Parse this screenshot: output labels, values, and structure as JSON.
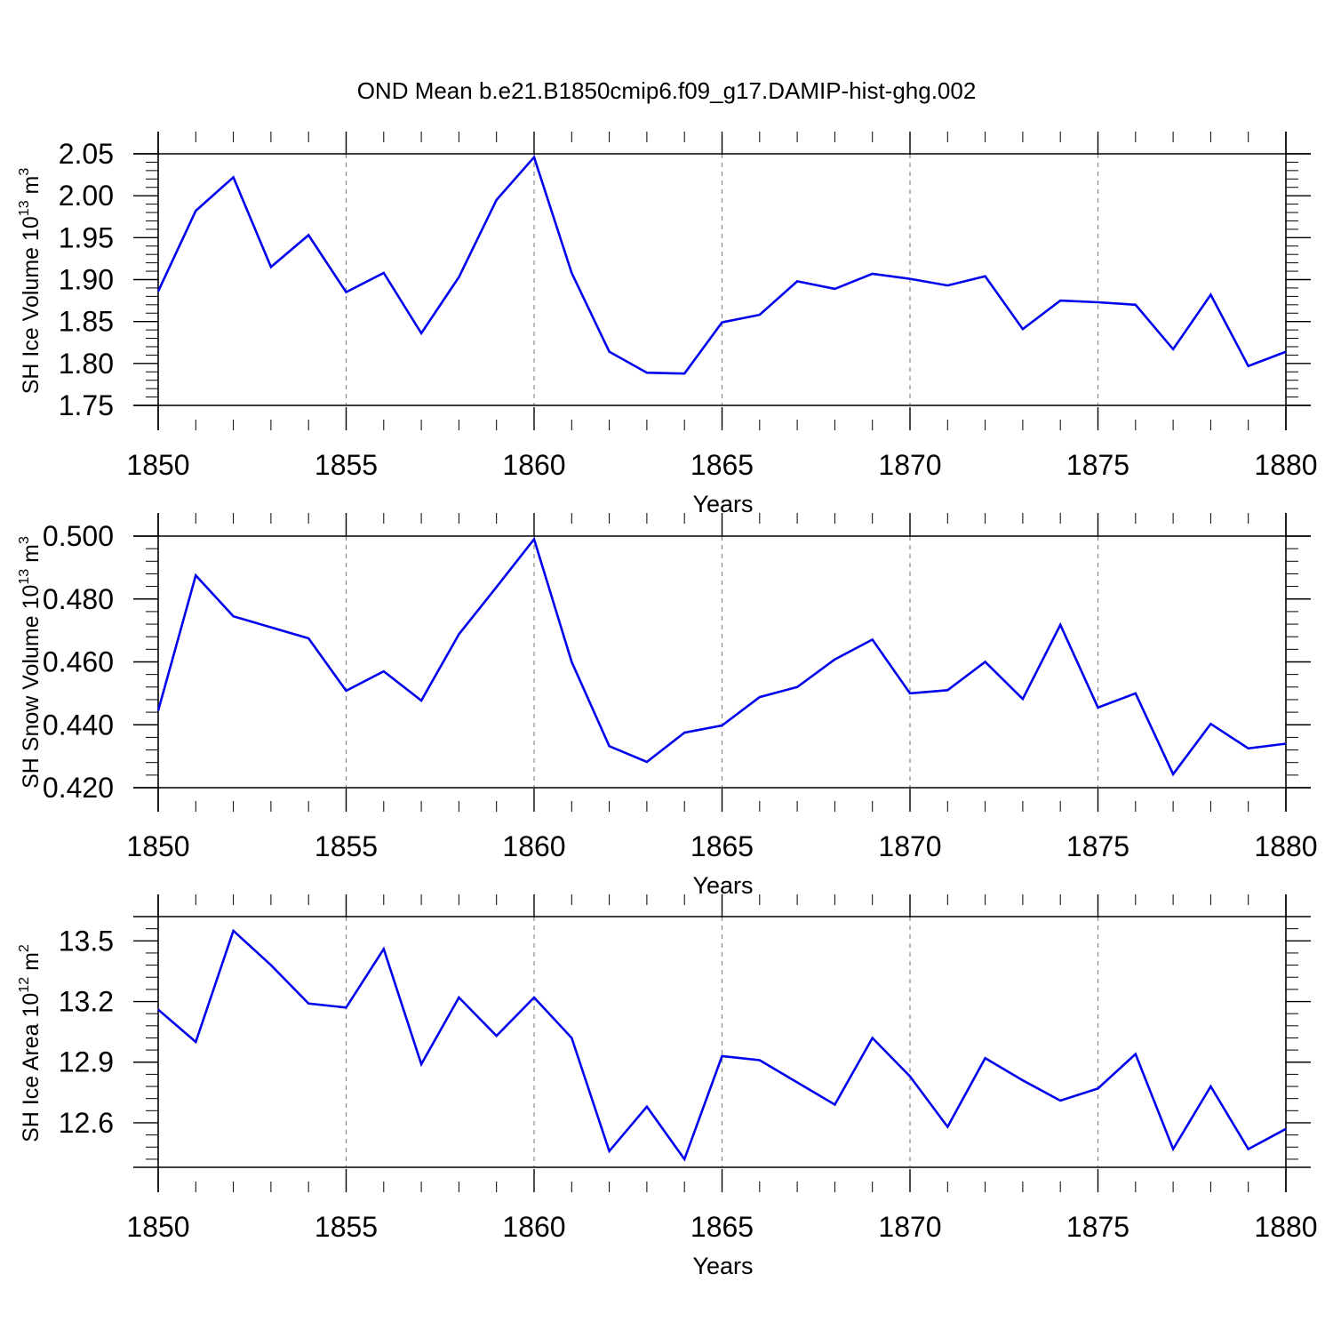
{
  "figure": {
    "title": "OND Mean b.e21.B1850cmip6.f09_g17.DAMIP-hist-ghg.002"
  },
  "chart_data": [
    {
      "type": "line",
      "xlabel": "Years",
      "ylabel": "SH Ice Volume 10",
      "ylabel_sup": "13",
      "ylabel_unit": " m",
      "ylabel_unit_sup": "3",
      "xlim": [
        1850,
        1880
      ],
      "ylim": [
        1.75,
        2.05
      ],
      "xticks": [
        1850,
        1855,
        1860,
        1865,
        1870,
        1875,
        1880
      ],
      "xtick_labels": [
        "1850",
        "1855",
        "1860",
        "1865",
        "1870",
        "1875",
        "1880"
      ],
      "yticks": [
        1.75,
        1.8,
        1.85,
        1.9,
        1.95,
        2.0,
        2.05
      ],
      "ytick_labels": [
        "1.75",
        "1.80",
        "1.85",
        "1.90",
        "1.95",
        "2.00",
        "2.05"
      ],
      "grid": "vertical dashed at major x ticks",
      "color": "#0000ee",
      "x": [
        1850,
        1851,
        1852,
        1853,
        1854,
        1855,
        1856,
        1857,
        1858,
        1859,
        1860,
        1861,
        1862,
        1863,
        1864,
        1865,
        1866,
        1867,
        1868,
        1869,
        1870,
        1871,
        1872,
        1873,
        1874,
        1875,
        1876,
        1877,
        1878,
        1879,
        1880
      ],
      "y": [
        1.886,
        1.982,
        2.022,
        1.915,
        1.953,
        1.885,
        1.908,
        1.836,
        1.903,
        1.995,
        2.046,
        1.908,
        1.814,
        1.789,
        1.788,
        1.849,
        1.858,
        1.898,
        1.889,
        1.907,
        1.901,
        1.893,
        1.904,
        1.841,
        1.875,
        1.873,
        1.87,
        1.817,
        1.882,
        1.797,
        1.814
      ]
    },
    {
      "type": "line",
      "xlabel": "Years",
      "ylabel": "SH Snow Volume 10",
      "ylabel_sup": "13",
      "ylabel_unit": " m",
      "ylabel_unit_sup": "3",
      "xlim": [
        1850,
        1880
      ],
      "ylim": [
        0.42,
        0.5
      ],
      "xticks": [
        1850,
        1855,
        1860,
        1865,
        1870,
        1875,
        1880
      ],
      "xtick_labels": [
        "1850",
        "1855",
        "1860",
        "1865",
        "1870",
        "1875",
        "1880"
      ],
      "yticks": [
        0.42,
        0.44,
        0.46,
        0.48,
        0.5
      ],
      "ytick_labels": [
        "0.420",
        "0.440",
        "0.460",
        "0.480",
        "0.500"
      ],
      "grid": "vertical dashed at major x ticks",
      "color": "#0000ee",
      "x": [
        1850,
        1851,
        1852,
        1853,
        1854,
        1855,
        1856,
        1857,
        1858,
        1859,
        1860,
        1861,
        1862,
        1863,
        1864,
        1865,
        1866,
        1867,
        1868,
        1869,
        1870,
        1871,
        1872,
        1873,
        1874,
        1875,
        1876,
        1877,
        1878,
        1879,
        1880
      ],
      "y": [
        0.4445,
        0.4875,
        0.4745,
        0.471,
        0.4675,
        0.4508,
        0.457,
        0.4477,
        0.4688,
        0.4838,
        0.499,
        0.46,
        0.4332,
        0.4282,
        0.4375,
        0.4398,
        0.4488,
        0.452,
        0.4608,
        0.4671,
        0.45,
        0.451,
        0.46,
        0.4482,
        0.4718,
        0.4455,
        0.45,
        0.4243,
        0.4403,
        0.4325,
        0.434
      ]
    },
    {
      "type": "line",
      "xlabel": "Years",
      "ylabel": "SH Ice Area 10",
      "ylabel_sup": "12",
      "ylabel_unit": " m",
      "ylabel_unit_sup": "2",
      "xlim": [
        1850,
        1880
      ],
      "ylim": [
        12.38,
        13.62
      ],
      "xticks": [
        1850,
        1855,
        1860,
        1865,
        1870,
        1875,
        1880
      ],
      "xtick_labels": [
        "1850",
        "1855",
        "1860",
        "1865",
        "1870",
        "1875",
        "1880"
      ],
      "yticks": [
        12.6,
        12.9,
        13.2,
        13.5
      ],
      "ytick_labels": [
        "12.6",
        "12.9",
        "13.2",
        "13.5"
      ],
      "grid": "vertical dashed at major x ticks",
      "color": "#0000ee",
      "x": [
        1850,
        1851,
        1852,
        1853,
        1854,
        1855,
        1856,
        1857,
        1858,
        1859,
        1860,
        1861,
        1862,
        1863,
        1864,
        1865,
        1866,
        1867,
        1868,
        1869,
        1870,
        1871,
        1872,
        1873,
        1874,
        1875,
        1876,
        1877,
        1878,
        1879,
        1880
      ],
      "y": [
        13.16,
        13.0,
        13.55,
        13.38,
        13.19,
        13.17,
        13.46,
        12.89,
        13.22,
        13.03,
        13.22,
        13.02,
        12.46,
        12.68,
        12.42,
        12.93,
        12.91,
        12.8,
        12.69,
        13.02,
        12.83,
        12.58,
        12.92,
        12.81,
        12.71,
        12.77,
        12.94,
        12.47,
        12.78,
        12.47,
        12.57
      ]
    }
  ]
}
